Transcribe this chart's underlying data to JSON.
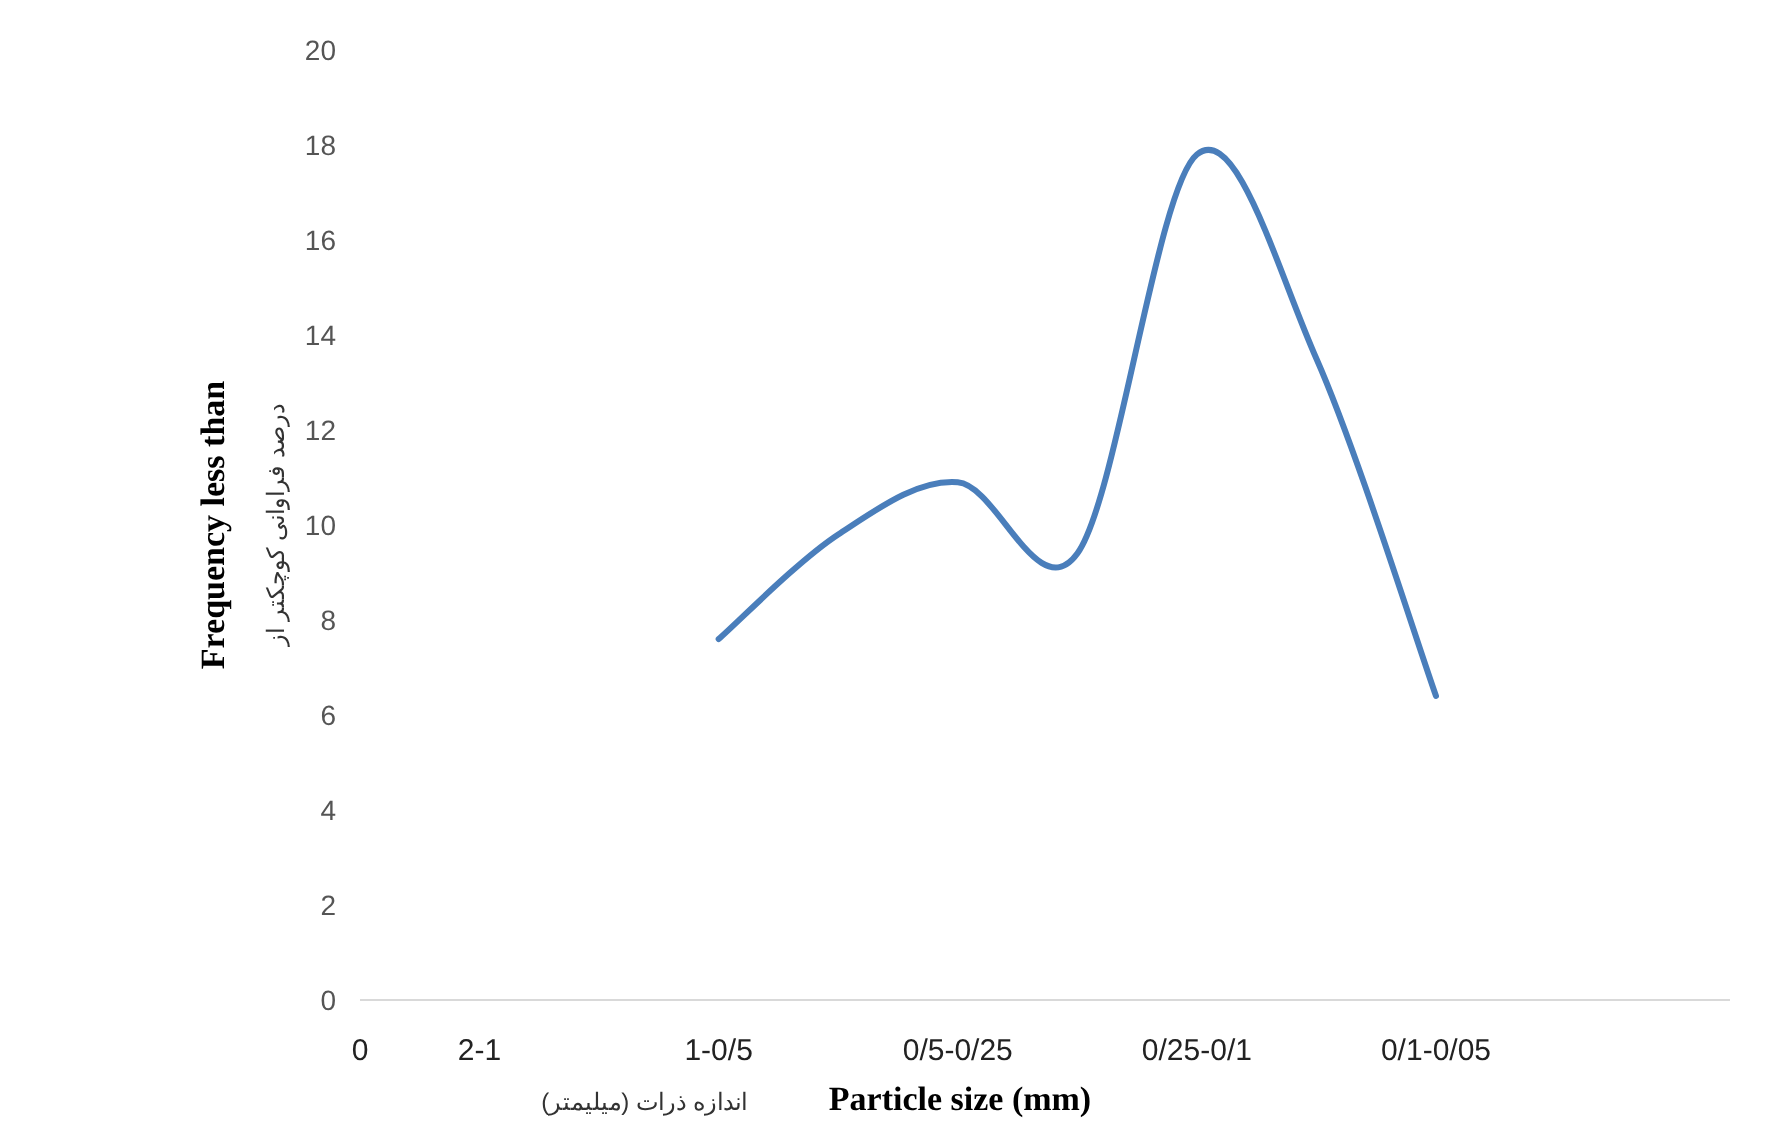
{
  "chart_data": {
    "type": "line",
    "ylabel": "Frequency less than",
    "annotations": [
      "درصد فراوانی کوچکتر از",
      "اندازه ذرات (میلیمتر)"
    ],
    "xlabel": "Particle size (mm)",
    "categories": [
      "0",
      "2-1",
      null,
      "1-0/5",
      null,
      "0/5-0/25",
      null,
      "0/25-0/1",
      null,
      "0/1-0/05"
    ],
    "ylim": [
      0,
      20
    ],
    "yticks": [
      0,
      2,
      4,
      6,
      8,
      10,
      12,
      14,
      16,
      18,
      20
    ],
    "grid": false,
    "marker": "none",
    "line_style": "solid",
    "series": [
      {
        "color": "#4a7ebb",
        "values": [
          null,
          null,
          null,
          7.6,
          9.8,
          10.9,
          9.4,
          17.8,
          13.5,
          6.4
        ]
      }
    ]
  }
}
